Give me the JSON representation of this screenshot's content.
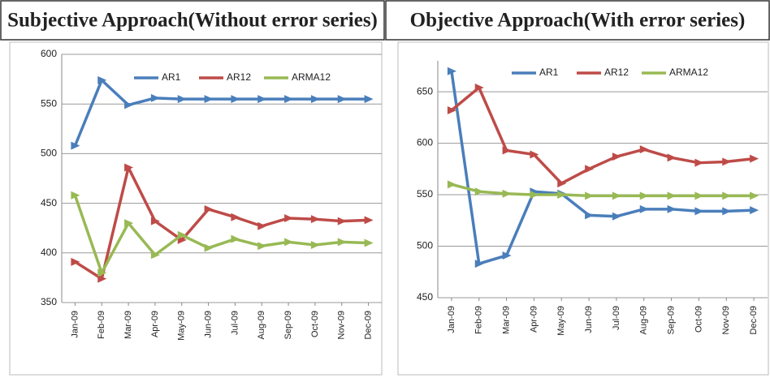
{
  "chart_data": [
    {
      "type": "line",
      "title": "Subjective Approach(Without error series)",
      "categories": [
        "Jan-09",
        "Feb-09",
        "Mar-09",
        "Apr-09",
        "May-09",
        "Jun-09",
        "Jul-09",
        "Aug-09",
        "Sep-09",
        "Oct-09",
        "Nov-09",
        "Dec-09"
      ],
      "series": [
        {
          "name": "AR1",
          "color": "#4a7ebb",
          "values": [
            508,
            574,
            549,
            556,
            555,
            555,
            555,
            555,
            555,
            555,
            555,
            555
          ]
        },
        {
          "name": "AR12",
          "color": "#be4b48",
          "values": [
            391,
            374,
            486,
            432,
            413,
            444,
            436,
            427,
            435,
            434,
            432,
            433
          ]
        },
        {
          "name": "ARMA12",
          "color": "#98b954",
          "values": [
            458,
            380,
            430,
            398,
            418,
            405,
            414,
            407,
            411,
            408,
            411,
            410
          ]
        }
      ],
      "ylim": [
        350,
        600
      ],
      "yticks": [
        350,
        400,
        450,
        500,
        550,
        600
      ],
      "grid": true,
      "legend": "top"
    },
    {
      "type": "line",
      "title": "Objective Approach(With error series)",
      "categories": [
        "Jan-09",
        "Feb-09",
        "Mar-09",
        "Apr-09",
        "May-09",
        "Jun-09",
        "Jul-09",
        "Aug-09",
        "Sep-09",
        "Oct-09",
        "Nov-09",
        "Dec-09"
      ],
      "series": [
        {
          "name": "AR1",
          "color": "#4a7ebb",
          "values": [
            670,
            483,
            491,
            553,
            551,
            530,
            529,
            536,
            536,
            534,
            534,
            535
          ]
        },
        {
          "name": "AR12",
          "color": "#be4b48",
          "values": [
            632,
            654,
            593,
            589,
            561,
            575,
            587,
            594,
            586,
            581,
            582,
            585
          ]
        },
        {
          "name": "ARMA12",
          "color": "#98b954",
          "values": [
            560,
            553,
            551,
            550,
            550,
            549,
            549,
            549,
            549,
            549,
            549,
            549
          ]
        }
      ],
      "ylim": [
        450,
        680
      ],
      "yticks": [
        450,
        500,
        550,
        600,
        650
      ],
      "grid": true,
      "legend": "top"
    }
  ]
}
